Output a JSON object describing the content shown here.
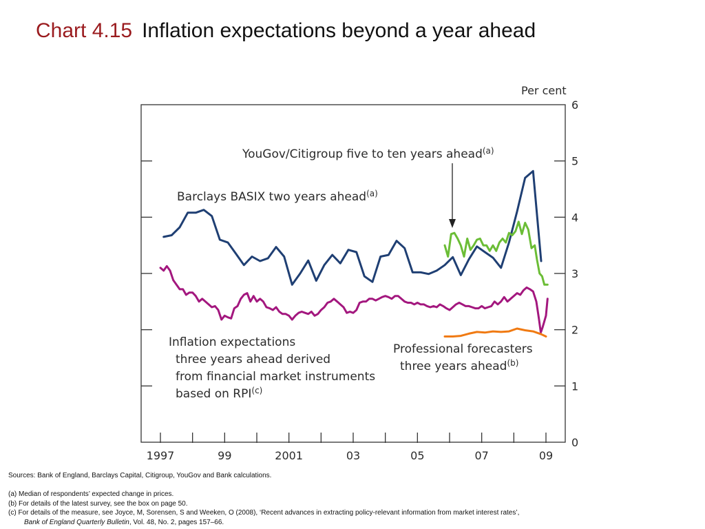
{
  "slide": {
    "chart_number": "Chart 4.15",
    "title": "Inflation expectations beyond a year ahead"
  },
  "notes": {
    "sources": "Sources:  Bank of England, Barclays Capital, Citigroup, YouGov and Bank calculations.",
    "note_a": "(a)  Median of respondents’ expected change in prices.",
    "note_b": "(b)  For details of the latest survey, see the box on page 50.",
    "note_c_line1": "(c)  For details of the measure, see Joyce, M, Sorensen, S and Weeken, O (2008), ‘Recent advances in extracting policy-relevant information from market interest rates’,",
    "note_c_journal": "Bank of England Quarterly Bulletin",
    "note_c_rest": ", Vol. 48, No. 2, pages 157–66."
  },
  "chart_data": {
    "type": "line",
    "title": "Inflation expectations beyond a year ahead",
    "y_unit_label": "Per cent",
    "ylim": [
      0,
      6
    ],
    "y_ticks": [
      "0",
      "1",
      "2",
      "3",
      "4",
      "5",
      "6"
    ],
    "xlim": [
      1997.0,
      2009.25
    ],
    "x_ticks": [
      {
        "label": "1997",
        "x": 1997.0
      },
      {
        "label": "99",
        "x": 1999.0
      },
      {
        "label": "2001",
        "x": 2001.0
      },
      {
        "label": "03",
        "x": 2003.0
      },
      {
        "label": "05",
        "x": 2005.0
      },
      {
        "label": "07",
        "x": 2007.0
      },
      {
        "label": "09",
        "x": 2009.0
      }
    ],
    "grid": false,
    "series": [
      {
        "name": "Barclays BASIX two years ahead",
        "footnote": "(a)",
        "color": "#1f3f73",
        "points": [
          [
            1997.1,
            3.65
          ],
          [
            1997.35,
            3.68
          ],
          [
            1997.6,
            3.82
          ],
          [
            1997.85,
            4.08
          ],
          [
            1998.1,
            4.08
          ],
          [
            1998.35,
            4.13
          ],
          [
            1998.6,
            4.02
          ],
          [
            1998.85,
            3.6
          ],
          [
            1999.1,
            3.55
          ],
          [
            1999.35,
            3.35
          ],
          [
            1999.6,
            3.15
          ],
          [
            1999.85,
            3.3
          ],
          [
            2000.1,
            3.22
          ],
          [
            2000.35,
            3.27
          ],
          [
            2000.6,
            3.47
          ],
          [
            2000.85,
            3.3
          ],
          [
            2001.1,
            2.8
          ],
          [
            2001.35,
            3.0
          ],
          [
            2001.6,
            3.23
          ],
          [
            2001.85,
            2.87
          ],
          [
            2002.1,
            3.15
          ],
          [
            2002.35,
            3.33
          ],
          [
            2002.6,
            3.18
          ],
          [
            2002.85,
            3.42
          ],
          [
            2003.1,
            3.38
          ],
          [
            2003.35,
            2.95
          ],
          [
            2003.6,
            2.85
          ],
          [
            2003.85,
            3.3
          ],
          [
            2004.1,
            3.33
          ],
          [
            2004.35,
            3.58
          ],
          [
            2004.6,
            3.45
          ],
          [
            2004.85,
            3.02
          ],
          [
            2005.1,
            3.02
          ],
          [
            2005.35,
            2.99
          ],
          [
            2005.6,
            3.05
          ],
          [
            2005.85,
            3.15
          ],
          [
            2006.1,
            3.29
          ],
          [
            2006.35,
            2.97
          ],
          [
            2006.6,
            3.25
          ],
          [
            2006.85,
            3.48
          ],
          [
            2007.1,
            3.38
          ],
          [
            2007.35,
            3.28
          ],
          [
            2007.6,
            3.1
          ],
          [
            2007.85,
            3.55
          ],
          [
            2008.1,
            4.1
          ],
          [
            2008.35,
            4.7
          ],
          [
            2008.6,
            4.82
          ],
          [
            2008.85,
            3.22
          ]
        ]
      },
      {
        "name": "YouGov/Citigroup five to ten years ahead",
        "footnote": "(a)",
        "color": "#6bbd36",
        "points": [
          [
            2005.85,
            3.5
          ],
          [
            2005.95,
            3.3
          ],
          [
            2006.05,
            3.7
          ],
          [
            2006.15,
            3.72
          ],
          [
            2006.25,
            3.62
          ],
          [
            2006.35,
            3.5
          ],
          [
            2006.45,
            3.3
          ],
          [
            2006.55,
            3.62
          ],
          [
            2006.65,
            3.42
          ],
          [
            2006.75,
            3.5
          ],
          [
            2006.85,
            3.6
          ],
          [
            2006.95,
            3.62
          ],
          [
            2007.05,
            3.5
          ],
          [
            2007.15,
            3.5
          ],
          [
            2007.25,
            3.4
          ],
          [
            2007.35,
            3.5
          ],
          [
            2007.45,
            3.4
          ],
          [
            2007.55,
            3.55
          ],
          [
            2007.65,
            3.62
          ],
          [
            2007.75,
            3.55
          ],
          [
            2007.85,
            3.72
          ],
          [
            2007.95,
            3.68
          ],
          [
            2008.05,
            3.75
          ],
          [
            2008.15,
            3.92
          ],
          [
            2008.25,
            3.7
          ],
          [
            2008.35,
            3.9
          ],
          [
            2008.45,
            3.78
          ],
          [
            2008.55,
            3.45
          ],
          [
            2008.65,
            3.5
          ],
          [
            2008.72,
            3.25
          ],
          [
            2008.8,
            3.0
          ],
          [
            2008.88,
            2.95
          ],
          [
            2008.95,
            2.8
          ],
          [
            2009.05,
            2.8
          ]
        ]
      },
      {
        "name": "Inflation expectations three years ahead derived from financial market instruments based on RPI",
        "footnote": "(c)",
        "color": "#a3177e",
        "points": [
          [
            1997.0,
            3.1
          ],
          [
            1997.1,
            3.05
          ],
          [
            1997.2,
            3.13
          ],
          [
            1997.3,
            3.05
          ],
          [
            1997.4,
            2.88
          ],
          [
            1997.5,
            2.8
          ],
          [
            1997.6,
            2.72
          ],
          [
            1997.7,
            2.72
          ],
          [
            1997.8,
            2.62
          ],
          [
            1997.9,
            2.66
          ],
          [
            1998.0,
            2.66
          ],
          [
            1998.1,
            2.6
          ],
          [
            1998.2,
            2.5
          ],
          [
            1998.3,
            2.55
          ],
          [
            1998.4,
            2.5
          ],
          [
            1998.5,
            2.45
          ],
          [
            1998.6,
            2.4
          ],
          [
            1998.7,
            2.42
          ],
          [
            1998.8,
            2.35
          ],
          [
            1998.9,
            2.18
          ],
          [
            1999.0,
            2.25
          ],
          [
            1999.1,
            2.22
          ],
          [
            1999.2,
            2.2
          ],
          [
            1999.3,
            2.38
          ],
          [
            1999.4,
            2.42
          ],
          [
            1999.5,
            2.55
          ],
          [
            1999.6,
            2.62
          ],
          [
            1999.7,
            2.65
          ],
          [
            1999.8,
            2.5
          ],
          [
            1999.9,
            2.6
          ],
          [
            2000.0,
            2.5
          ],
          [
            2000.1,
            2.55
          ],
          [
            2000.2,
            2.5
          ],
          [
            2000.3,
            2.4
          ],
          [
            2000.4,
            2.38
          ],
          [
            2000.5,
            2.35
          ],
          [
            2000.6,
            2.4
          ],
          [
            2000.7,
            2.32
          ],
          [
            2000.8,
            2.28
          ],
          [
            2000.9,
            2.28
          ],
          [
            2001.0,
            2.25
          ],
          [
            2001.1,
            2.18
          ],
          [
            2001.2,
            2.25
          ],
          [
            2001.3,
            2.3
          ],
          [
            2001.4,
            2.32
          ],
          [
            2001.5,
            2.3
          ],
          [
            2001.6,
            2.28
          ],
          [
            2001.7,
            2.32
          ],
          [
            2001.8,
            2.25
          ],
          [
            2001.9,
            2.28
          ],
          [
            2002.0,
            2.35
          ],
          [
            2002.1,
            2.4
          ],
          [
            2002.2,
            2.48
          ],
          [
            2002.3,
            2.5
          ],
          [
            2002.4,
            2.55
          ],
          [
            2002.5,
            2.5
          ],
          [
            2002.6,
            2.45
          ],
          [
            2002.7,
            2.4
          ],
          [
            2002.8,
            2.3
          ],
          [
            2002.9,
            2.32
          ],
          [
            2003.0,
            2.3
          ],
          [
            2003.1,
            2.35
          ],
          [
            2003.2,
            2.48
          ],
          [
            2003.3,
            2.5
          ],
          [
            2003.4,
            2.5
          ],
          [
            2003.5,
            2.55
          ],
          [
            2003.6,
            2.55
          ],
          [
            2003.7,
            2.52
          ],
          [
            2003.8,
            2.55
          ],
          [
            2003.9,
            2.58
          ],
          [
            2004.0,
            2.6
          ],
          [
            2004.1,
            2.58
          ],
          [
            2004.2,
            2.55
          ],
          [
            2004.3,
            2.6
          ],
          [
            2004.4,
            2.6
          ],
          [
            2004.5,
            2.55
          ],
          [
            2004.6,
            2.5
          ],
          [
            2004.7,
            2.48
          ],
          [
            2004.8,
            2.48
          ],
          [
            2004.9,
            2.45
          ],
          [
            2005.0,
            2.48
          ],
          [
            2005.1,
            2.45
          ],
          [
            2005.2,
            2.45
          ],
          [
            2005.3,
            2.42
          ],
          [
            2005.4,
            2.4
          ],
          [
            2005.5,
            2.42
          ],
          [
            2005.6,
            2.4
          ],
          [
            2005.7,
            2.45
          ],
          [
            2005.8,
            2.42
          ],
          [
            2005.9,
            2.38
          ],
          [
            2006.0,
            2.35
          ],
          [
            2006.1,
            2.4
          ],
          [
            2006.2,
            2.45
          ],
          [
            2006.3,
            2.48
          ],
          [
            2006.4,
            2.45
          ],
          [
            2006.5,
            2.42
          ],
          [
            2006.6,
            2.42
          ],
          [
            2006.7,
            2.4
          ],
          [
            2006.8,
            2.38
          ],
          [
            2006.9,
            2.38
          ],
          [
            2007.0,
            2.42
          ],
          [
            2007.1,
            2.38
          ],
          [
            2007.2,
            2.4
          ],
          [
            2007.3,
            2.42
          ],
          [
            2007.4,
            2.5
          ],
          [
            2007.5,
            2.45
          ],
          [
            2007.6,
            2.5
          ],
          [
            2007.7,
            2.58
          ],
          [
            2007.8,
            2.5
          ],
          [
            2007.9,
            2.55
          ],
          [
            2008.0,
            2.6
          ],
          [
            2008.1,
            2.65
          ],
          [
            2008.2,
            2.62
          ],
          [
            2008.3,
            2.7
          ],
          [
            2008.4,
            2.75
          ],
          [
            2008.5,
            2.72
          ],
          [
            2008.6,
            2.68
          ],
          [
            2008.7,
            2.5
          ],
          [
            2008.78,
            2.2
          ],
          [
            2008.84,
            1.95
          ],
          [
            2008.9,
            2.05
          ],
          [
            2009.0,
            2.25
          ],
          [
            2009.05,
            2.55
          ]
        ]
      },
      {
        "name": "Professional forecasters three years ahead",
        "footnote": "(b)",
        "color": "#f07a12",
        "points": [
          [
            2005.85,
            1.88
          ],
          [
            2006.1,
            1.88
          ],
          [
            2006.35,
            1.89
          ],
          [
            2006.6,
            1.93
          ],
          [
            2006.85,
            1.96
          ],
          [
            2007.1,
            1.95
          ],
          [
            2007.35,
            1.97
          ],
          [
            2007.6,
            1.96
          ],
          [
            2007.85,
            1.97
          ],
          [
            2008.1,
            2.02
          ],
          [
            2008.35,
            1.99
          ],
          [
            2008.6,
            1.97
          ],
          [
            2008.85,
            1.92
          ],
          [
            2009.0,
            1.88
          ]
        ]
      }
    ],
    "annotations": [
      {
        "text": "YouGov/Citigroup five to ten years ahead",
        "sup": "(a)"
      },
      {
        "text": "Barclays BASIX two years ahead",
        "sup": "(a)"
      },
      {
        "lines": [
          "Inflation expectations",
          "three years ahead derived",
          "from financial market instruments",
          "based on RPI"
        ],
        "sup": "(c)"
      },
      {
        "lines": [
          "Professional forecasters",
          "three years ahead"
        ],
        "sup": "(b)"
      }
    ]
  }
}
